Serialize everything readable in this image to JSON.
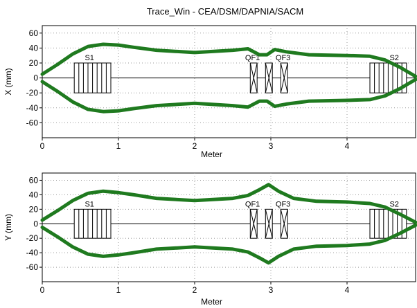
{
  "chart_data": {
    "title": "Trace_Win - CEA/DSM/DAPNIA/SACM",
    "colors": {
      "envelope": "#1f7a1f",
      "element": "#000000",
      "axis": "#000000"
    },
    "plots": [
      {
        "id": "x",
        "type": "line",
        "xlabel": "Meter",
        "ylabel": "X (mm)",
        "xlim": [
          0,
          4.9
        ],
        "ylim": [
          -80,
          70
        ],
        "xticks": [
          0,
          1,
          2,
          3,
          4
        ],
        "yticks": [
          60,
          40,
          20,
          0,
          -20,
          -40,
          -60
        ],
        "grid": true,
        "series": [
          {
            "x": [
              0,
              0.2,
              0.4,
              0.6,
              0.8,
              1.0,
              1.2,
              1.5,
              2.0,
              2.5,
              2.7,
              2.85,
              2.95,
              3.05,
              3.2,
              3.5,
              4.0,
              4.3,
              4.5,
              4.7,
              4.9
            ],
            "y": [
              5,
              18,
              32,
              42,
              45,
              44,
              41,
              37,
              34,
              37,
              39,
              31,
              31,
              38,
              35,
              31,
              30,
              29,
              24,
              14,
              2
            ]
          },
          {
            "x": [
              0,
              0.2,
              0.4,
              0.6,
              0.8,
              1.0,
              1.2,
              1.5,
              2.0,
              2.5,
              2.7,
              2.85,
              2.95,
              3.05,
              3.2,
              3.5,
              4.0,
              4.3,
              4.5,
              4.7,
              4.9
            ],
            "y": [
              -5,
              -18,
              -32,
              -42,
              -45,
              -44,
              -41,
              -37,
              -34,
              -37,
              -39,
              -31,
              -31,
              -38,
              -35,
              -31,
              -30,
              -29,
              -24,
              -14,
              -2
            ]
          }
        ],
        "elements": [
          {
            "label": "S1",
            "x0": 0.42,
            "x1": 0.9,
            "h": 20,
            "lines": 8,
            "type": "solenoid",
            "label_x": 0.62
          },
          {
            "label": "QF1",
            "x0": 2.73,
            "x1": 2.82,
            "h": 20,
            "type": "quad",
            "label_x": 2.76
          },
          {
            "label": "",
            "x0": 2.93,
            "x1": 3.02,
            "h": 20,
            "type": "quad"
          },
          {
            "label": "QF3",
            "x0": 3.13,
            "x1": 3.22,
            "h": 20,
            "type": "quad",
            "label_x": 3.16
          },
          {
            "label": "S2",
            "x0": 4.3,
            "x1": 4.78,
            "h": 20,
            "lines": 8,
            "type": "solenoid",
            "label_x": 4.62
          }
        ]
      },
      {
        "id": "y",
        "type": "line",
        "xlabel": "Meter",
        "ylabel": "Y (mm)",
        "xlim": [
          0,
          4.9
        ],
        "ylim": [
          -80,
          70
        ],
        "xticks": [
          0,
          1,
          2,
          3,
          4
        ],
        "yticks": [
          60,
          40,
          20,
          0,
          -20,
          -40,
          -60
        ],
        "grid": true,
        "series": [
          {
            "x": [
              0,
              0.2,
              0.4,
              0.6,
              0.8,
              1.0,
              1.2,
              1.5,
              2.0,
              2.5,
              2.7,
              2.85,
              2.97,
              3.1,
              3.3,
              3.6,
              4.0,
              4.3,
              4.5,
              4.7,
              4.9
            ],
            "y": [
              5,
              18,
              32,
              42,
              45,
              43,
              40,
              35,
              32,
              35,
              39,
              47,
              54,
              45,
              35,
              31,
              30,
              28,
              23,
              13,
              2
            ]
          },
          {
            "x": [
              0,
              0.2,
              0.4,
              0.6,
              0.8,
              1.0,
              1.2,
              1.5,
              2.0,
              2.5,
              2.7,
              2.85,
              2.97,
              3.1,
              3.3,
              3.6,
              4.0,
              4.3,
              4.5,
              4.7,
              4.9
            ],
            "y": [
              -5,
              -18,
              -32,
              -42,
              -45,
              -43,
              -40,
              -35,
              -32,
              -35,
              -39,
              -47,
              -54,
              -45,
              -35,
              -31,
              -30,
              -28,
              -23,
              -13,
              -2
            ]
          }
        ],
        "elements": [
          {
            "label": "S1",
            "x0": 0.42,
            "x1": 0.9,
            "h": 20,
            "lines": 8,
            "type": "solenoid",
            "label_x": 0.62
          },
          {
            "label": "QF1",
            "x0": 2.73,
            "x1": 2.82,
            "h": 20,
            "type": "quad",
            "label_x": 2.76
          },
          {
            "label": "",
            "x0": 2.93,
            "x1": 3.02,
            "h": 20,
            "type": "quad"
          },
          {
            "label": "QF3",
            "x0": 3.13,
            "x1": 3.22,
            "h": 20,
            "type": "quad",
            "label_x": 3.16
          },
          {
            "label": "S2",
            "x0": 4.3,
            "x1": 4.78,
            "h": 20,
            "lines": 8,
            "type": "solenoid",
            "label_x": 4.62
          }
        ]
      }
    ]
  }
}
